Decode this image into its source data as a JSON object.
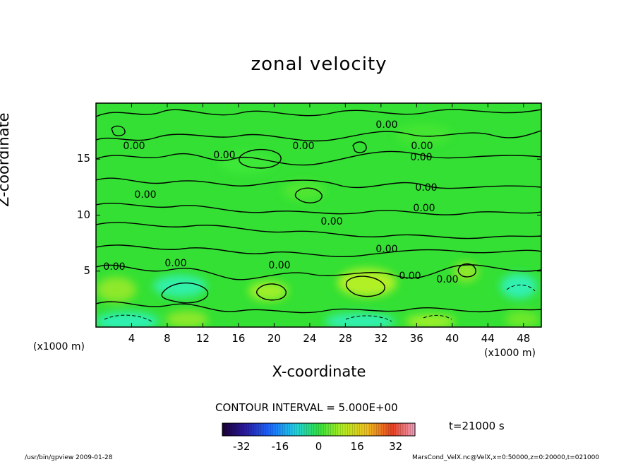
{
  "chart_data": {
    "type": "heatmap",
    "title": "zonal velocity",
    "xlabel": "X-coordinate",
    "ylabel": "Z-coordinate",
    "x_unit_label": "(x1000 m)",
    "xlim": [
      0,
      50
    ],
    "ylim": [
      0,
      20
    ],
    "x_ticks": [
      "4",
      "8",
      "12",
      "16",
      "20",
      "24",
      "28",
      "32",
      "36",
      "40",
      "44",
      "48"
    ],
    "y_ticks": [
      "5",
      "10",
      "15"
    ],
    "contour_interval_text": "CONTOUR INTERVAL = 5.000E+00",
    "contour_labels": [
      "0.00",
      "0.00",
      "0.00",
      "0.00",
      "0.00",
      "0.00",
      "0.00",
      "0.00",
      "0.00",
      "0.00",
      "0.00",
      "0.00",
      "0.00",
      "0.00",
      "0.00",
      "0.00"
    ],
    "colorbar": {
      "range": [
        -40,
        40
      ],
      "ticks": [
        "-32",
        "-16",
        "0",
        "16",
        "32"
      ],
      "colormap": "rainbow"
    },
    "time_text": "t=21000 s",
    "colors": {
      "field_base": "#33e033",
      "field_high": "#a8f02a",
      "field_low": "#2ef0b0",
      "contour": "#000000"
    }
  },
  "footer": {
    "left": "/usr/bin/gpview   2009-01-28",
    "right": "MarsCond_VelX.nc@VelX,x=0:50000,z=0:20000,t=021000"
  }
}
